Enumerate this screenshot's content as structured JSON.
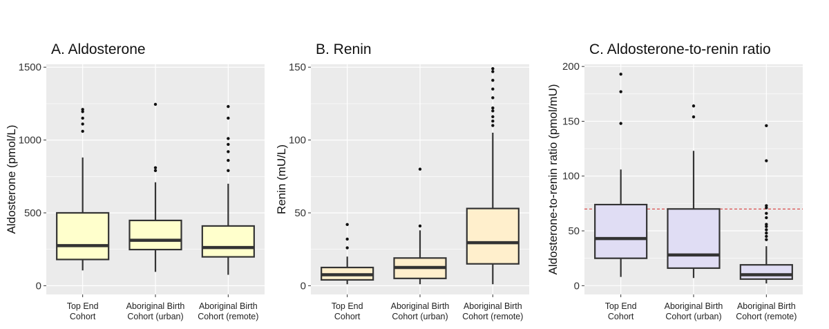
{
  "figure_colors": {
    "panel_background": "#ebebeb",
    "grid": "#ffffff",
    "box_stroke": "#333333",
    "reference_line": "#d62728"
  },
  "chart_data": [
    {
      "type": "box",
      "title": "A. Aldosterone",
      "ylabel": "Aldosterone (pmol/L)",
      "ylim": [
        -60,
        1520
      ],
      "yticks": [
        0,
        500,
        1000,
        1500
      ],
      "fill": "#ffffcc",
      "categories": [
        {
          "line1": "Top End",
          "line2": "Cohort"
        },
        {
          "line1": "Aboriginal Birth",
          "line2": "Cohort (urban)"
        },
        {
          "line1": "Aboriginal Birth",
          "line2": "Cohort (remote)"
        }
      ],
      "boxes": [
        {
          "min": 105,
          "q1": 180,
          "median": 275,
          "q3": 500,
          "max": 880,
          "outliers": [
            1060,
            1110,
            1150,
            1195,
            1210
          ]
        },
        {
          "min": 95,
          "q1": 248,
          "median": 312,
          "q3": 448,
          "max": 710,
          "outliers": [
            790,
            810,
            1245
          ]
        },
        {
          "min": 75,
          "q1": 198,
          "median": 262,
          "q3": 410,
          "max": 700,
          "outliers": [
            790,
            860,
            920,
            970,
            1010,
            1150,
            1230
          ]
        }
      ]
    },
    {
      "type": "box",
      "title": "B. Renin",
      "ylabel": "Renin (mU/L)",
      "ylim": [
        -6,
        152
      ],
      "yticks": [
        0,
        50,
        100,
        150
      ],
      "fill": "#ffefcc",
      "categories": [
        {
          "line1": "Top End",
          "line2": "Cohort"
        },
        {
          "line1": "Aboriginal Birth",
          "line2": "Cohort (urban)"
        },
        {
          "line1": "Aboriginal Birth",
          "line2": "Cohort (remote)"
        }
      ],
      "boxes": [
        {
          "min": 1,
          "q1": 4,
          "median": 7.5,
          "q3": 12.5,
          "max": 20,
          "outliers": [
            26,
            32,
            42
          ]
        },
        {
          "min": 1,
          "q1": 5,
          "median": 12.5,
          "q3": 19,
          "max": 38,
          "outliers": [
            41,
            80
          ]
        },
        {
          "min": 1,
          "q1": 15,
          "median": 29.5,
          "q3": 53,
          "max": 105,
          "outliers": [
            110,
            113,
            116,
            120,
            122,
            129,
            135,
            141,
            147,
            149
          ]
        }
      ]
    },
    {
      "type": "box",
      "title": "C. Aldosterone-to-renin ratio",
      "ylabel": "Aldosterone-to-renin ratio (pmol/mU)",
      "ylim": [
        -8,
        202
      ],
      "yticks": [
        0,
        50,
        100,
        150,
        200
      ],
      "fill": "#e0ddf4",
      "reference_line": 70,
      "categories": [
        {
          "line1": "Top End",
          "line2": "Cohort"
        },
        {
          "line1": "Aboriginal Birth",
          "line2": "Cohort (urban)"
        },
        {
          "line1": "Aboriginal Birth",
          "line2": "Cohort (remote)"
        }
      ],
      "boxes": [
        {
          "min": 8,
          "q1": 25,
          "median": 43,
          "q3": 74,
          "max": 106,
          "outliers": [
            148,
            177,
            193
          ]
        },
        {
          "min": 7,
          "q1": 16,
          "median": 28,
          "q3": 70,
          "max": 123,
          "outliers": [
            154,
            164
          ]
        },
        {
          "min": 2,
          "q1": 6,
          "median": 10,
          "q3": 19,
          "max": 36,
          "outliers": [
            42,
            45,
            48,
            51,
            54,
            56,
            62,
            66,
            71,
            73,
            114,
            146
          ]
        }
      ]
    }
  ]
}
